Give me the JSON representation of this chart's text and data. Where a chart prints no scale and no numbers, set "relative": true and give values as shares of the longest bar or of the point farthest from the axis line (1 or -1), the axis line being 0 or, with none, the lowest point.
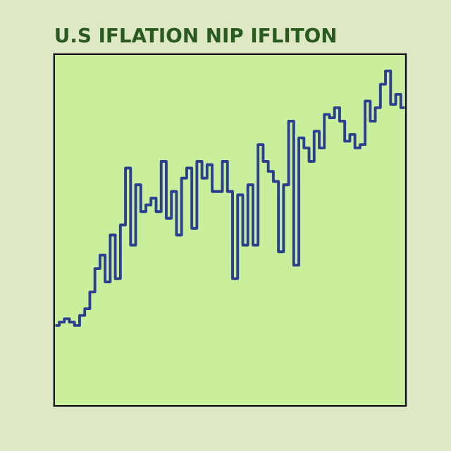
{
  "chart_data": {
    "type": "step",
    "title": "U.S IFLATION NIP IFLITON",
    "relative": true,
    "categories": [
      null,
      null,
      null,
      null,
      null,
      null,
      null,
      null,
      null,
      null,
      null,
      null,
      null,
      null,
      null,
      null,
      null,
      null,
      null,
      null,
      null,
      null,
      null,
      null,
      null,
      null,
      null,
      null,
      null,
      null,
      null,
      null,
      null,
      null,
      null,
      null,
      null,
      null,
      null,
      null,
      null,
      null,
      null,
      null,
      null,
      null,
      null,
      null,
      null,
      null,
      null,
      null,
      null,
      null,
      null,
      null,
      null,
      null,
      null,
      null,
      null,
      null,
      null,
      null,
      null,
      null,
      null,
      null,
      null
    ],
    "series": [
      {
        "color": "#2a3f8f",
        "values": [
          0.24,
          0.25,
          0.26,
          0.25,
          0.24,
          0.27,
          0.29,
          0.34,
          0.41,
          0.45,
          0.37,
          0.51,
          0.38,
          0.54,
          0.71,
          0.48,
          0.66,
          0.58,
          0.6,
          0.62,
          0.58,
          0.73,
          0.56,
          0.64,
          0.51,
          0.68,
          0.71,
          0.53,
          0.73,
          0.68,
          0.72,
          0.64,
          0.64,
          0.73,
          0.64,
          0.38,
          0.63,
          0.48,
          0.66,
          0.48,
          0.78,
          0.73,
          0.7,
          0.67,
          0.46,
          0.66,
          0.85,
          0.42,
          0.8,
          0.77,
          0.73,
          0.82,
          0.77,
          0.87,
          0.86,
          0.89,
          0.85,
          0.79,
          0.81,
          0.77,
          0.78,
          0.91,
          0.85,
          0.89,
          0.96,
          1.0,
          0.9,
          0.93,
          0.89
        ]
      }
    ]
  }
}
